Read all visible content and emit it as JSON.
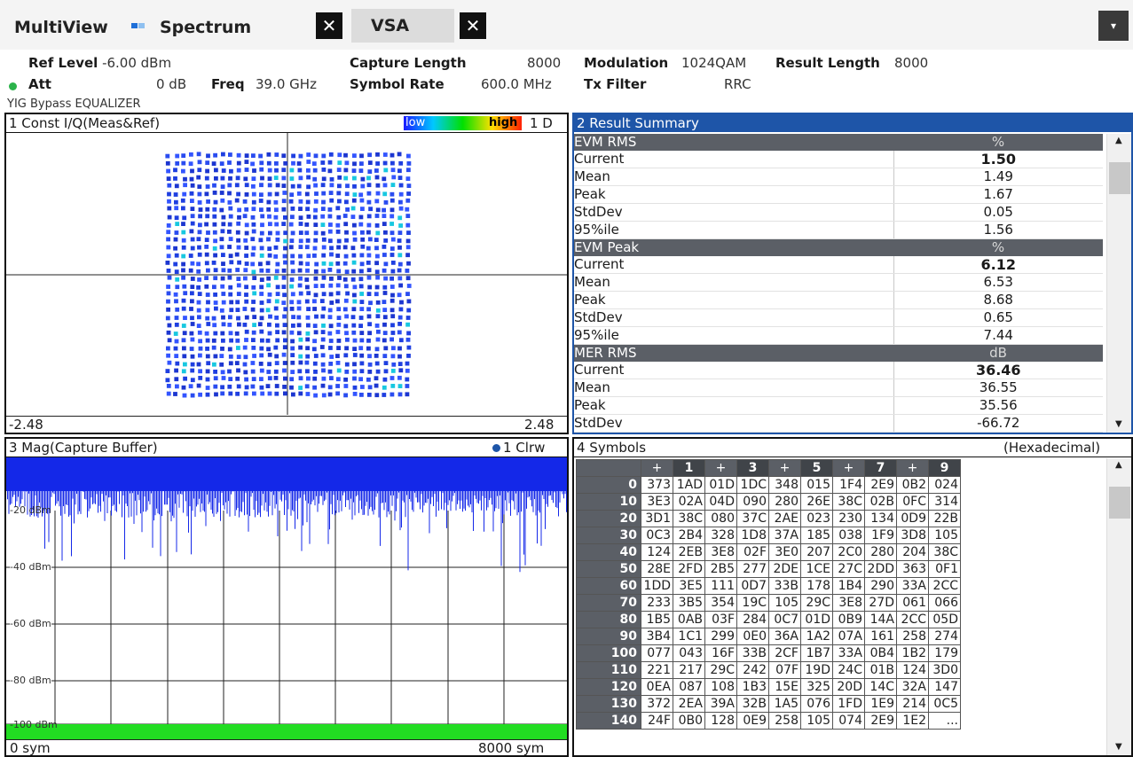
{
  "tabs": {
    "multiview": "MultiView",
    "spectrum": "Spectrum",
    "vsa": "VSA",
    "close_glyph": "✕",
    "menu_glyph": "▾"
  },
  "params": {
    "ref_level_label": "Ref Level",
    "ref_level_value": "-6.00 dBm",
    "att_label": "Att",
    "att_value": "0 dB",
    "freq_label": "Freq",
    "freq_value": "39.0 GHz",
    "capture_length_label": "Capture Length",
    "capture_length_value": "8000",
    "symbol_rate_label": "Symbol Rate",
    "symbol_rate_value": "600.0 MHz",
    "modulation_label": "Modulation",
    "modulation_value": "1024QAM",
    "tx_filter_label": "Tx Filter",
    "tx_filter_value": "RRC",
    "result_length_label": "Result Length",
    "result_length_value": "8000",
    "yig_note": "YIG Bypass EQUALIZER"
  },
  "pane1": {
    "title": "1 Const I/Q(Meas&Ref)",
    "legend_low": "low",
    "legend_high": "high",
    "trace": "1 D",
    "xmin": "-2.48",
    "xmax": "2.48",
    "grid_points": 32
  },
  "pane2": {
    "title": "2 Result Summary",
    "sections": [
      {
        "name": "EVM RMS",
        "unit": "%",
        "rows": [
          {
            "label": "Current",
            "value": "1.50"
          },
          {
            "label": "Mean",
            "value": "1.49"
          },
          {
            "label": "Peak",
            "value": "1.67"
          },
          {
            "label": "StdDev",
            "value": "0.05"
          },
          {
            "label": "95%ile",
            "value": "1.56"
          }
        ]
      },
      {
        "name": "EVM Peak",
        "unit": "%",
        "rows": [
          {
            "label": "Current",
            "value": "6.12"
          },
          {
            "label": "Mean",
            "value": "6.53"
          },
          {
            "label": "Peak",
            "value": "8.68"
          },
          {
            "label": "StdDev",
            "value": "0.65"
          },
          {
            "label": "95%ile",
            "value": "7.44"
          }
        ]
      },
      {
        "name": "MER RMS",
        "unit": "dB",
        "rows": [
          {
            "label": "Current",
            "value": "36.46"
          },
          {
            "label": "Mean",
            "value": "36.55"
          },
          {
            "label": "Peak",
            "value": "35.56"
          },
          {
            "label": "StdDev",
            "value": "-66.72"
          }
        ]
      }
    ]
  },
  "pane3": {
    "title": "3 Mag(Capture Buffer)",
    "trace": "1 Clrw",
    "y_labels": [
      "-20 dBm",
      "-40 dBm",
      "-60 dBm",
      "-80 dBm",
      "-100 dBm"
    ],
    "x_start": "0 sym",
    "x_end": "8000 sym"
  },
  "pane4": {
    "title": "4 Symbols",
    "format": "(Hexadecimal)",
    "columns": [
      "",
      "+",
      "1",
      "+",
      "3",
      "+",
      "5",
      "+",
      "7",
      "+",
      "9"
    ],
    "rows": [
      {
        "offset": "0",
        "cells": [
          "373",
          "1AD",
          "01D",
          "1DC",
          "348",
          "015",
          "1F4",
          "2E9",
          "0B2",
          "024"
        ]
      },
      {
        "offset": "10",
        "cells": [
          "3E3",
          "02A",
          "04D",
          "090",
          "280",
          "26E",
          "38C",
          "02B",
          "0FC",
          "314"
        ]
      },
      {
        "offset": "20",
        "cells": [
          "3D1",
          "38C",
          "080",
          "37C",
          "2AE",
          "023",
          "230",
          "134",
          "0D9",
          "22B"
        ]
      },
      {
        "offset": "30",
        "cells": [
          "0C3",
          "2B4",
          "328",
          "1D8",
          "37A",
          "185",
          "038",
          "1F9",
          "3D8",
          "105"
        ]
      },
      {
        "offset": "40",
        "cells": [
          "124",
          "2EB",
          "3E8",
          "02F",
          "3E0",
          "207",
          "2C0",
          "280",
          "204",
          "38C"
        ]
      },
      {
        "offset": "50",
        "cells": [
          "28E",
          "2FD",
          "2B5",
          "277",
          "2DE",
          "1CE",
          "27C",
          "2DD",
          "363",
          "0F1"
        ]
      },
      {
        "offset": "60",
        "cells": [
          "1DD",
          "3E5",
          "111",
          "0D7",
          "33B",
          "178",
          "1B4",
          "290",
          "33A",
          "2CC"
        ]
      },
      {
        "offset": "70",
        "cells": [
          "233",
          "3B5",
          "354",
          "19C",
          "105",
          "29C",
          "3E8",
          "27D",
          "061",
          "066"
        ]
      },
      {
        "offset": "80",
        "cells": [
          "1B5",
          "0AB",
          "03F",
          "284",
          "0C7",
          "01D",
          "0B9",
          "14A",
          "2CC",
          "05D"
        ]
      },
      {
        "offset": "90",
        "cells": [
          "3B4",
          "1C1",
          "299",
          "0E0",
          "36A",
          "1A2",
          "07A",
          "161",
          "258",
          "274"
        ]
      },
      {
        "offset": "100",
        "cells": [
          "077",
          "043",
          "16F",
          "33B",
          "2CF",
          "1B7",
          "33A",
          "0B4",
          "1B2",
          "179"
        ]
      },
      {
        "offset": "110",
        "cells": [
          "221",
          "217",
          "29C",
          "242",
          "07F",
          "19D",
          "24C",
          "01B",
          "124",
          "3D0"
        ]
      },
      {
        "offset": "120",
        "cells": [
          "0EA",
          "087",
          "108",
          "1B3",
          "15E",
          "325",
          "20D",
          "14C",
          "32A",
          "147"
        ]
      },
      {
        "offset": "130",
        "cells": [
          "372",
          "2EA",
          "39A",
          "32B",
          "1A5",
          "076",
          "1FD",
          "1E9",
          "214",
          "0C5"
        ]
      },
      {
        "offset": "140",
        "cells": [
          "24F",
          "0B0",
          "128",
          "0E9",
          "258",
          "105",
          "074",
          "2E9",
          "1E2",
          "..."
        ]
      }
    ]
  },
  "colors": {
    "constellation_blue": "#1f3fe0",
    "trace_blue": "#1428e8",
    "fill_green": "#22dd22",
    "header_blue": "#1e55a8"
  }
}
